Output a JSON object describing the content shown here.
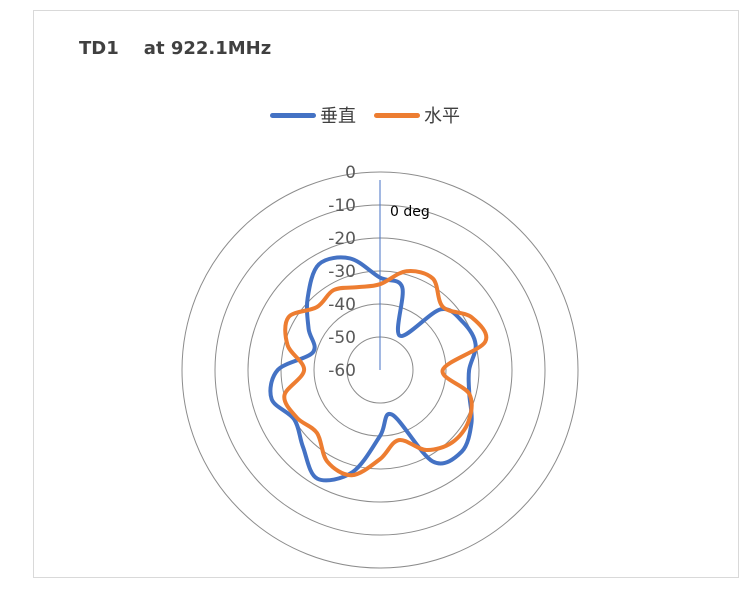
{
  "title": "TD1    at 922.1MHz",
  "chart_data": {
    "type": "polar-line",
    "title": "TD1    at 922.1MHz",
    "r_ticks": [
      "0",
      "-10",
      "-20",
      "-30",
      "-40",
      "-50",
      "-60"
    ],
    "r_range": [
      -60,
      0
    ],
    "angle_label": "0 deg",
    "legend_position": "top",
    "series": [
      {
        "name": "垂直",
        "color": "#4472c4",
        "angles": [
          0,
          15,
          30,
          45,
          60,
          75,
          90,
          105,
          120,
          135,
          150,
          165,
          180,
          195,
          210,
          225,
          240,
          255,
          270,
          285,
          300,
          315,
          330,
          345
        ],
        "values": [
          -32,
          -34,
          -48,
          -34,
          -31,
          -30,
          -33,
          -32,
          -28,
          -25,
          -28,
          -46,
          -40,
          -28,
          -22,
          -27,
          -30,
          -26,
          -29,
          -39,
          -35,
          -29,
          -23,
          -25
        ]
      },
      {
        "name": "水平",
        "color": "#ed7d31",
        "angles": [
          0,
          15,
          30,
          45,
          60,
          75,
          90,
          105,
          120,
          135,
          150,
          165,
          180,
          195,
          210,
          225,
          240,
          255,
          270,
          285,
          300,
          315,
          330,
          345
        ],
        "values": [
          -34,
          -29,
          -28,
          -33,
          -28,
          -27,
          -41,
          -32,
          -29,
          -29,
          -32,
          -38,
          -33,
          -27,
          -28,
          -33,
          -31,
          -30,
          -37,
          -31,
          -28,
          -33,
          -32,
          -34
        ]
      }
    ]
  }
}
